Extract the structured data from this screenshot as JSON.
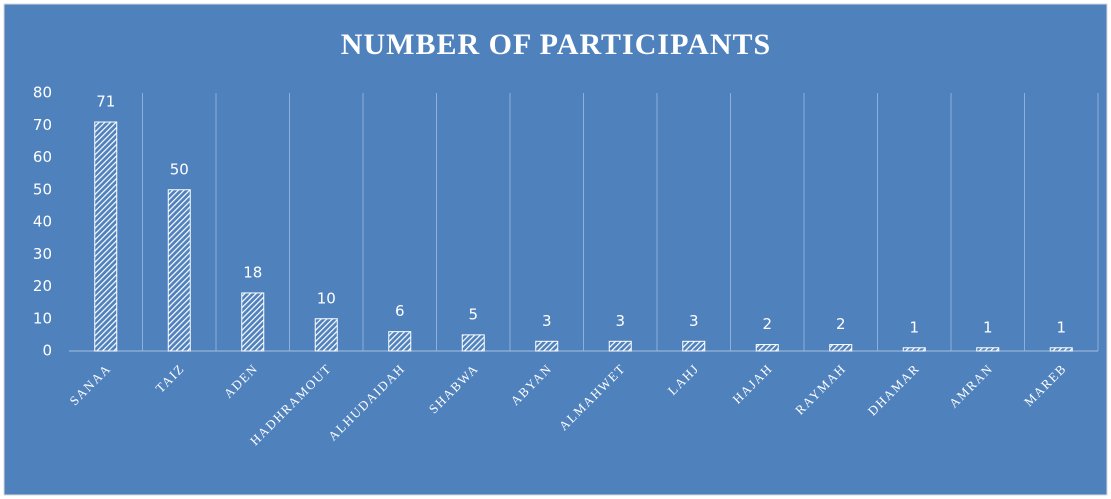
{
  "chart_data": {
    "type": "bar",
    "title": "NUMBER OF PARTICIPANTS",
    "categories": [
      "SANAA",
      "TAIZ",
      "ADEN",
      "HADHRAMOUT",
      "ALHUDAIDAH",
      "SHABWA",
      "ABYAN",
      "ALMAHWET",
      "LAHJ",
      "HAJAH",
      "RAYMAH",
      "DHAMAR",
      "AMRAN",
      "MAREB"
    ],
    "values": [
      71,
      50,
      18,
      10,
      6,
      5,
      3,
      3,
      3,
      2,
      2,
      1,
      1,
      1
    ],
    "color": "#ffffff",
    "background": "#4f81bd",
    "ylim": [
      0,
      80
    ],
    "yticks": [
      0,
      10,
      20,
      30,
      40,
      50,
      60,
      70,
      80
    ],
    "grid": true
  }
}
